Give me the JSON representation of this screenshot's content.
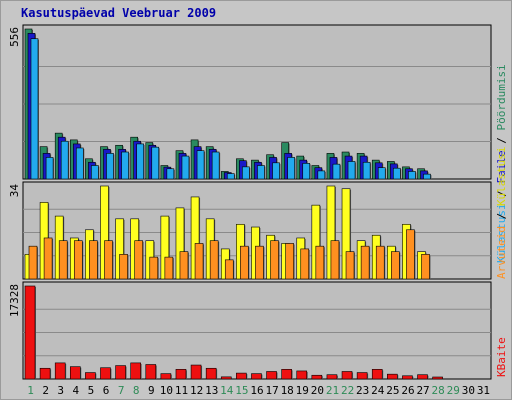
{
  "chart_data": {
    "title": "Kasutuspäevad Veebruar 2009",
    "type": "bar",
    "x": [
      "1",
      "2",
      "3",
      "4",
      "5",
      "6",
      "7",
      "8",
      "9",
      "10",
      "11",
      "12",
      "13",
      "14",
      "15",
      "16",
      "17",
      "18",
      "19",
      "20",
      "21",
      "22",
      "23",
      "24",
      "25",
      "26",
      "27",
      "28",
      "29",
      "30",
      "31"
    ],
    "weekend_days": [
      "1",
      "7",
      "8",
      "14",
      "15",
      "21",
      "22",
      "28",
      "29"
    ],
    "panels": [
      {
        "name": "hits-files-pages",
        "max_label": "556",
        "ylim": [
          0,
          556
        ],
        "legend": {
          "pages": "Pöördumisi",
          "files": "Faile",
          "hits": "Külastusi"
        },
        "series": [
          {
            "key": "pages",
            "name": "Pöördumisi",
            "color": "#2a8a60",
            "values": [
              556,
              120,
              170,
              145,
              75,
              120,
              125,
              155,
              135,
              50,
              105,
              145,
              120,
              28,
              75,
              70,
              90,
              135,
              85,
              50,
              95,
              100,
              95,
              70,
              65,
              45,
              38,
              0,
              0,
              0,
              0
            ]
          },
          {
            "key": "files",
            "name": "Faile",
            "color": "#1818c8",
            "values": [
              540,
              95,
              155,
              130,
              62,
              110,
              110,
              140,
              125,
              44,
              95,
              120,
              110,
              24,
              68,
              62,
              80,
              95,
              70,
              42,
              80,
              85,
              85,
              60,
              56,
              38,
              30,
              0,
              0,
              0,
              0
            ]
          },
          {
            "key": "visits",
            "name": "Külastusi",
            "color": "#22aaee",
            "values": [
              520,
              80,
              140,
              115,
              50,
              95,
              100,
              130,
              118,
              38,
              85,
              105,
              100,
              20,
              45,
              50,
              60,
              80,
              58,
              30,
              55,
              65,
              62,
              42,
              40,
              28,
              18,
              0,
              0,
              0,
              0
            ]
          }
        ]
      },
      {
        "name": "visits-hosts",
        "max_label": "34",
        "ylim": [
          0,
          34
        ],
        "legend": {
          "visits": "Külastusi",
          "hosts": "Arvuteid"
        },
        "series": [
          {
            "key": "visits_y",
            "name": "Külastusi",
            "color": "#ffff20",
            "values": [
              9,
              28,
              23,
              15,
              18,
              34,
              22,
              22,
              14,
              23,
              26,
              30,
              22,
              11,
              20,
              19,
              16,
              13,
              15,
              27,
              34,
              33,
              14,
              16,
              12,
              20,
              10,
              0,
              0,
              0,
              0
            ]
          },
          {
            "key": "hosts",
            "name": "Arvuteid",
            "color": "#ff9020",
            "values": [
              12,
              15,
              14,
              14,
              14,
              14,
              9,
              14,
              8,
              8,
              10,
              13,
              14,
              7,
              12,
              12,
              14,
              13,
              11,
              12,
              14,
              10,
              12,
              12,
              10,
              18,
              9,
              0,
              0,
              0,
              0
            ]
          }
        ]
      },
      {
        "name": "kbytes",
        "max_label": "17328",
        "ylim": [
          0,
          17328
        ],
        "legend": {
          "kbytes": "KBaite"
        },
        "series": [
          {
            "key": "kbytes",
            "name": "KBaite",
            "color": "#ee1010",
            "values": [
              17328,
              2000,
              3000,
              2300,
              1200,
              2100,
              2500,
              3000,
              2700,
              1000,
              1800,
              2600,
              2000,
              400,
              1100,
              1000,
              1400,
              1800,
              1500,
              700,
              800,
              1400,
              1200,
              1800,
              900,
              600,
              800,
              300,
              0,
              0,
              0
            ]
          }
        ]
      }
    ]
  }
}
